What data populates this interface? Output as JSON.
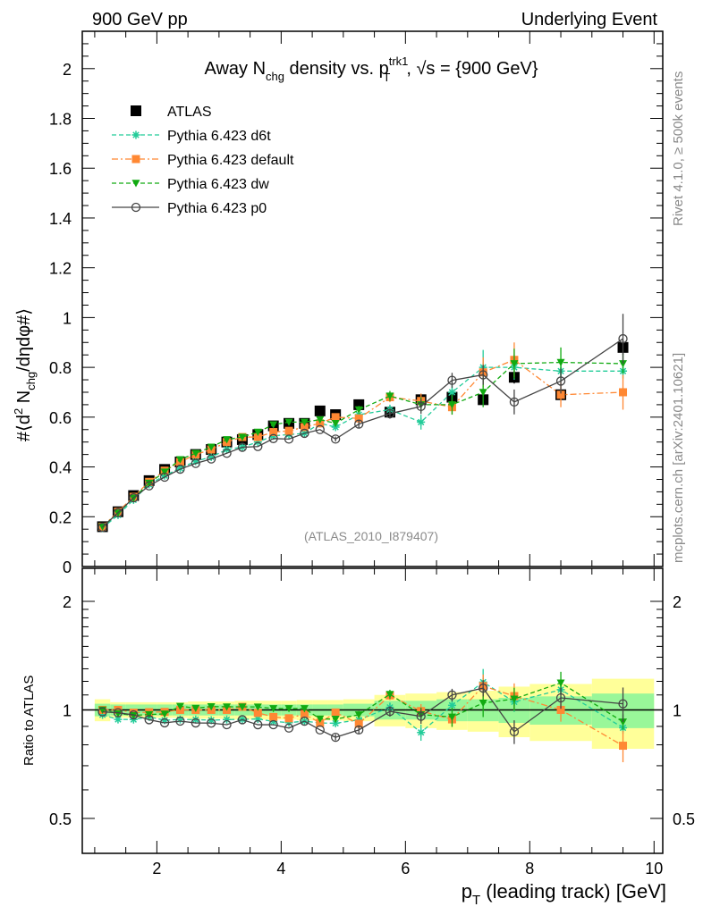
{
  "header": {
    "left": "900 GeV pp",
    "right": "Underlying Event"
  },
  "side": {
    "rivet": "Rivet 4.1.0, ≥ 500k events",
    "mcplots": "mcplots.cern.ch [arXiv:2401.10621]"
  },
  "watermark": "(ATLAS_2010_I879407)",
  "title": {
    "a": "Away N",
    "sub1": "chg",
    "b": " density vs. p",
    "sup": "trk1",
    "sub2": "T",
    "c": ", √s = {900 GeV}"
  },
  "ylabel": {
    "a": "#⟨d",
    "sup": "2",
    "b": " N",
    "sub": "chg",
    "c": "/dηdφ#⟩"
  },
  "ratio_ylabel": "Ratio to ATLAS",
  "xlabel": {
    "a": "p",
    "sub": "T",
    "b": " (leading track) [GeV]"
  },
  "colors": {
    "atlas": "#000000",
    "d6t": "#22cc99",
    "default": "#ff8833",
    "dw": "#11aa11",
    "p0": "#444444",
    "band_inner": "#99f799",
    "band_outer": "#ffff99"
  },
  "chart_data": {
    "type": "scatter",
    "title": "Away Nchg density vs. pT trk1, sqrt(s) = {900 GeV}",
    "xlabel": "pT (leading track) [GeV]",
    "ylabel": "<d2 Nchg/deta dphi>",
    "xlim": [
      0.8,
      10.14
    ],
    "ylim": [
      0,
      2.15
    ],
    "ratio_ylim": [
      0.4,
      2.47
    ],
    "ratio_scale": "log",
    "xticks": [
      2,
      4,
      6,
      8,
      10
    ],
    "yticks": [
      0,
      0.2,
      0.4,
      0.6,
      0.8,
      1,
      1.2,
      1.4,
      1.6,
      1.8,
      2
    ],
    "ratio_yticks": [
      0.5,
      1,
      2
    ],
    "legend_position": "top-left",
    "bin_edges": [
      1,
      1.25,
      1.5,
      1.75,
      2,
      2.25,
      2.5,
      2.75,
      3,
      3.25,
      3.5,
      3.75,
      4,
      4.25,
      4.5,
      4.75,
      5,
      5.5,
      6,
      6.5,
      7,
      7.5,
      8,
      9,
      10
    ],
    "x": [
      1.125,
      1.375,
      1.625,
      1.875,
      2.125,
      2.375,
      2.625,
      2.875,
      3.125,
      3.375,
      3.625,
      3.875,
      4.125,
      4.375,
      4.625,
      4.875,
      5.25,
      5.75,
      6.25,
      6.75,
      7.25,
      7.75,
      8.5,
      9.5
    ],
    "ratio_band_inner": [
      0.04,
      0.035,
      0.035,
      0.035,
      0.035,
      0.035,
      0.035,
      0.035,
      0.035,
      0.035,
      0.035,
      0.035,
      0.035,
      0.035,
      0.035,
      0.035,
      0.04,
      0.06,
      0.06,
      0.07,
      0.07,
      0.08,
      0.09,
      0.11
    ],
    "ratio_band_outer": [
      0.07,
      0.05,
      0.05,
      0.05,
      0.05,
      0.05,
      0.055,
      0.055,
      0.055,
      0.06,
      0.06,
      0.06,
      0.06,
      0.065,
      0.065,
      0.065,
      0.07,
      0.1,
      0.11,
      0.12,
      0.13,
      0.16,
      0.18,
      0.22
    ],
    "series": [
      {
        "key": "atlas",
        "name": "ATLAS",
        "marker": "square",
        "line": "none",
        "values": [
          0.16,
          0.22,
          0.285,
          0.345,
          0.39,
          0.42,
          0.45,
          0.47,
          0.5,
          0.51,
          0.53,
          0.565,
          0.575,
          0.575,
          0.625,
          0.61,
          0.65,
          0.62,
          0.67,
          0.68,
          0.67,
          0.76,
          0.69,
          0.88
        ],
        "errors": [
          0,
          0,
          0,
          0,
          0,
          0,
          0,
          0,
          0,
          0,
          0,
          0,
          0,
          0,
          0,
          0,
          0.01,
          0.01,
          0.015,
          0.02,
          0.02,
          0.025,
          0.02,
          0.03
        ]
      },
      {
        "key": "d6t",
        "name": "Pythia 6.423 d6t",
        "marker": "asterisk",
        "line": "dashed",
        "values": [
          0.155,
          0.207,
          0.268,
          0.33,
          0.365,
          0.395,
          0.423,
          0.44,
          0.47,
          0.48,
          0.5,
          0.525,
          0.53,
          0.535,
          0.575,
          0.56,
          0.61,
          0.63,
          0.58,
          0.7,
          0.8,
          0.8,
          0.785,
          0.785
        ],
        "errors": [
          0,
          0,
          0,
          0,
          0,
          0,
          0,
          0,
          0,
          0,
          0,
          0,
          0,
          0,
          0,
          0.01,
          0.015,
          0.02,
          0.03,
          0.03,
          0.07,
          0.05,
          0.04,
          0.03
        ]
      },
      {
        "key": "default",
        "name": "Pythia 6.423 default",
        "marker": "square",
        "line": "dashdot",
        "values": [
          0.16,
          0.22,
          0.28,
          0.34,
          0.385,
          0.42,
          0.45,
          0.47,
          0.5,
          0.52,
          0.52,
          0.54,
          0.545,
          0.56,
          0.575,
          0.6,
          0.595,
          0.68,
          0.665,
          0.64,
          0.78,
          0.83,
          0.69,
          0.7
        ],
        "errors": [
          0,
          0,
          0,
          0,
          0,
          0,
          0,
          0,
          0,
          0,
          0,
          0,
          0,
          0,
          0,
          0.01,
          0.015,
          0.02,
          0.03,
          0.03,
          0.06,
          0.07,
          0.05,
          0.07
        ]
      },
      {
        "key": "dw",
        "name": "Pythia 6.423 dw",
        "marker": "triangle-down",
        "line": "dashed",
        "values": [
          0.16,
          0.215,
          0.275,
          0.335,
          0.38,
          0.43,
          0.455,
          0.48,
          0.51,
          0.52,
          0.54,
          0.57,
          0.58,
          0.58,
          0.59,
          0.575,
          0.63,
          0.685,
          0.65,
          0.65,
          0.7,
          0.815,
          0.82,
          0.815
        ],
        "errors": [
          0,
          0,
          0,
          0,
          0,
          0,
          0,
          0,
          0,
          0,
          0,
          0,
          0,
          0,
          0,
          0.01,
          0.015,
          0.02,
          0.03,
          0.04,
          0.06,
          0.06,
          0.06,
          0.04
        ]
      },
      {
        "key": "p0",
        "name": "Pythia 6.423 p0",
        "marker": "open-circle",
        "line": "solid",
        "values": [
          0.158,
          0.216,
          0.276,
          0.324,
          0.359,
          0.391,
          0.414,
          0.432,
          0.455,
          0.479,
          0.482,
          0.514,
          0.512,
          0.535,
          0.55,
          0.512,
          0.572,
          0.614,
          0.643,
          0.748,
          0.77,
          0.661,
          0.745,
          0.915
        ],
        "errors": [
          0,
          0,
          0,
          0,
          0,
          0,
          0,
          0,
          0,
          0,
          0,
          0,
          0,
          0,
          0,
          0.01,
          0.015,
          0.02,
          0.03,
          0.03,
          0.04,
          0.05,
          0.05,
          0.1
        ]
      }
    ]
  }
}
